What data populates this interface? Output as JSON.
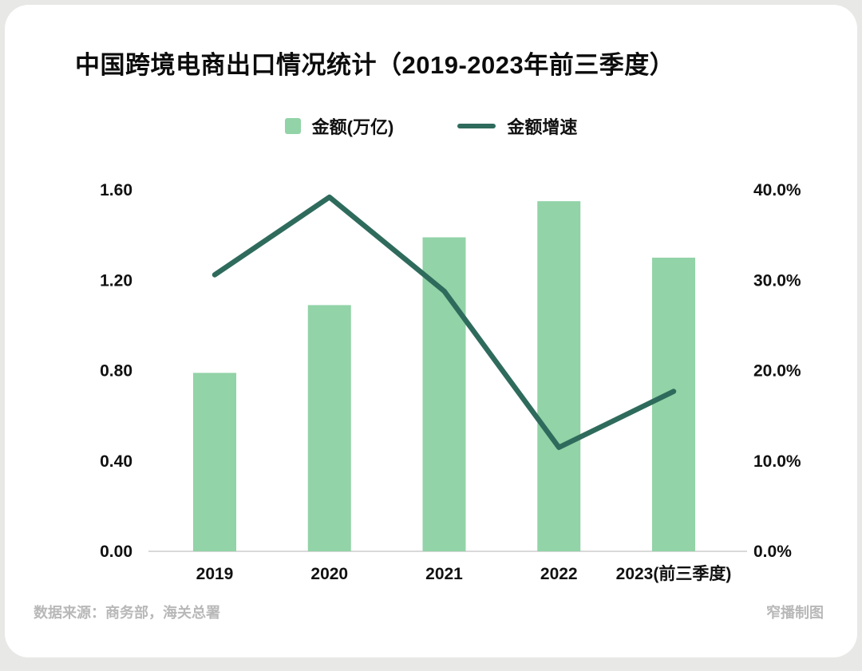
{
  "title": "中国跨境电商出口情况统计（2019-2023年前三季度）",
  "footer": {
    "source": "数据来源：商务部，海关总署",
    "credit": "窄播制图"
  },
  "colors": {
    "bar": "#92d3a7",
    "line": "#2f6b5c",
    "axis_text": "#111111",
    "baseline": "#d9d9d9",
    "muted_text": "#b8b8b8",
    "card_bg": "#ffffff",
    "page_bg": "#e8e8e6"
  },
  "chart_data": {
    "type": "bar",
    "subtype": "bar+line combo, dual axis",
    "categories": [
      "2019",
      "2020",
      "2021",
      "2022",
      "2023(前三季度)"
    ],
    "series": [
      {
        "name": "金额(万亿)",
        "type": "bar",
        "axis": "left",
        "values": [
          0.79,
          1.09,
          1.39,
          1.55,
          1.3
        ]
      },
      {
        "name": "金额增速",
        "type": "line",
        "axis": "right",
        "values": [
          30.6,
          39.2,
          28.8,
          11.5,
          17.7
        ]
      }
    ],
    "left_axis": {
      "min": 0,
      "max": 1.6,
      "ticks": [
        {
          "label": "0.00",
          "value": 0.0
        },
        {
          "label": "0.40",
          "value": 0.4
        },
        {
          "label": "0.80",
          "value": 0.8
        },
        {
          "label": "1.20",
          "value": 1.2
        },
        {
          "label": "1.60",
          "value": 1.6
        }
      ]
    },
    "right_axis": {
      "min": 0,
      "max": 40,
      "ticks": [
        {
          "label": "0.0%",
          "value": 0
        },
        {
          "label": "10.0%",
          "value": 10
        },
        {
          "label": "20.0%",
          "value": 20
        },
        {
          "label": "30.0%",
          "value": 30
        },
        {
          "label": "40.0%",
          "value": 40
        }
      ]
    },
    "grid": "off",
    "legend_position": "top-center"
  }
}
